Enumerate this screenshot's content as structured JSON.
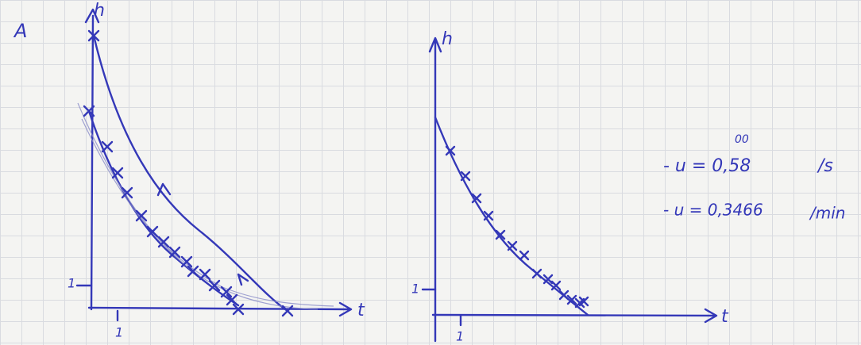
{
  "panel_label": "A",
  "left_graph": {
    "y_label": "h",
    "x_label": "t",
    "y_tick": "1",
    "x_tick": "1"
  },
  "right_graph": {
    "y_label": "h",
    "x_label": "t",
    "y_tick": "1",
    "x_tick": "1"
  },
  "notes": [
    {
      "text": "- u = 0,58",
      "superscript": "00",
      "unit": "/s"
    },
    {
      "text": "- u = 0,3466",
      "unit": "/min"
    }
  ]
}
